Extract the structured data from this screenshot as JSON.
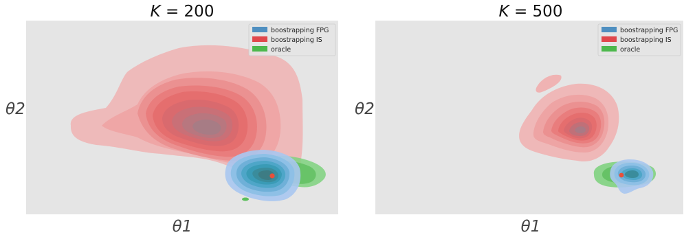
{
  "chart_data": [
    {
      "type": "kde_contour",
      "title": "K = 200",
      "title_var": "K",
      "title_val": "200",
      "xlabel": "θ1",
      "ylabel": "θ2",
      "xticks": [],
      "yticks": [],
      "grid": false,
      "background": "#e5e5e5",
      "legend_position": "top-right",
      "legend": [
        {
          "label": "boostrapping FPG",
          "color": "#4f8fc0"
        },
        {
          "label": "boostrapping IS",
          "color": "#e0474c"
        },
        {
          "label": "oracle",
          "color": "#4cb84c"
        }
      ],
      "true_parameter_marker": {
        "color": "#e8503a"
      }
    },
    {
      "type": "kde_contour",
      "title": "K = 500",
      "title_var": "K",
      "title_val": "500",
      "xlabel": "θ1",
      "ylabel": "θ2",
      "xticks": [],
      "yticks": [],
      "grid": false,
      "background": "#e5e5e5",
      "legend_position": "top-right",
      "legend": [
        {
          "label": "boostrapping FPG",
          "color": "#4f8fc0"
        },
        {
          "label": "boostrapping IS",
          "color": "#e0474c"
        },
        {
          "label": "oracle",
          "color": "#4cb84c"
        }
      ],
      "true_parameter_marker": {
        "color": "#e8503a"
      }
    }
  ]
}
